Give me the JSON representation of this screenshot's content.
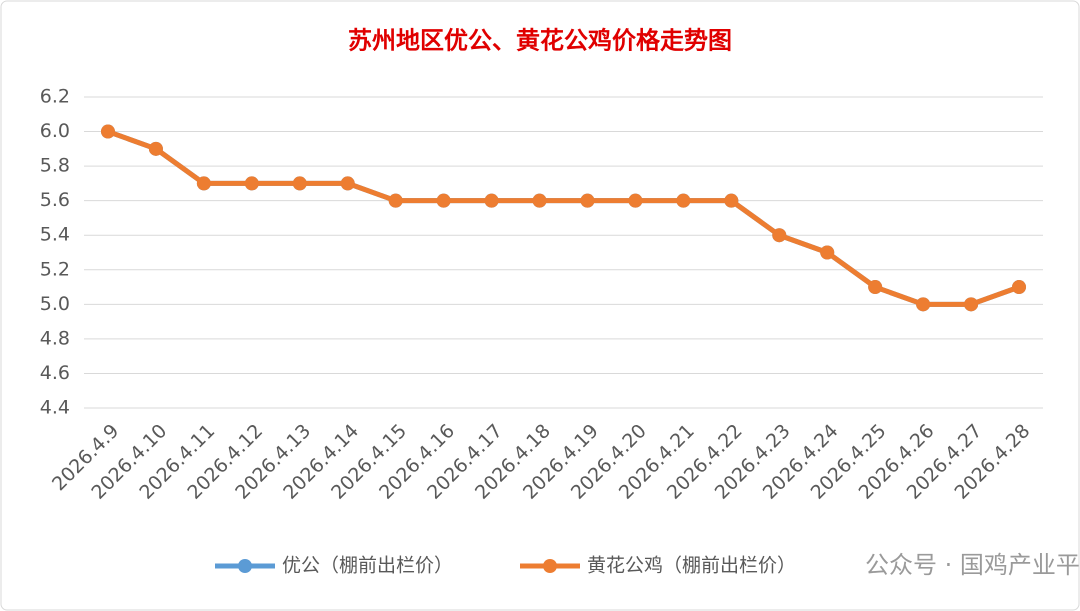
{
  "chart_data": {
    "type": "line",
    "title": "苏州地区优公、黄花公鸡价格走势图",
    "categories": [
      "2026.4.9",
      "2026.4.10",
      "2026.4.11",
      "2026.4.12",
      "2026.4.13",
      "2026.4.14",
      "2026.4.15",
      "2026.4.16",
      "2026.4.17",
      "2026.4.18",
      "2026.4.19",
      "2026.4.20",
      "2026.4.21",
      "2026.4.22",
      "2026.4.23",
      "2026.4.24",
      "2026.4.25",
      "2026.4.26",
      "2026.4.27",
      "2026.4.28"
    ],
    "series": [
      {
        "name": "优公（棚前出栏价）",
        "color": "#5b9bd5",
        "values": [
          6.0,
          5.9,
          5.7,
          5.7,
          5.7,
          5.7,
          5.6,
          5.6,
          5.6,
          5.6,
          5.6,
          5.6,
          5.6,
          5.6,
          5.4,
          5.3,
          5.1,
          5.0,
          5.0,
          5.1
        ]
      },
      {
        "name": "黄花公鸡（棚前出栏价）",
        "color": "#ed7d31",
        "values": [
          6.0,
          5.9,
          5.7,
          5.7,
          5.7,
          5.7,
          5.6,
          5.6,
          5.6,
          5.6,
          5.6,
          5.6,
          5.6,
          5.6,
          5.4,
          5.3,
          5.1,
          5.0,
          5.0,
          5.1
        ]
      }
    ],
    "ylim": [
      4.4,
      6.2
    ],
    "yticks": [
      4.4,
      4.6,
      4.8,
      {
        "value": 5,
        "label": "5.0"
      },
      5.2,
      5.4,
      5.6,
      5.8,
      {
        "value": 6,
        "label": "6.0"
      },
      6.2
    ],
    "grid": true,
    "legend": "bottom",
    "watermark": "公众号 · 国鸡产业平台"
  }
}
